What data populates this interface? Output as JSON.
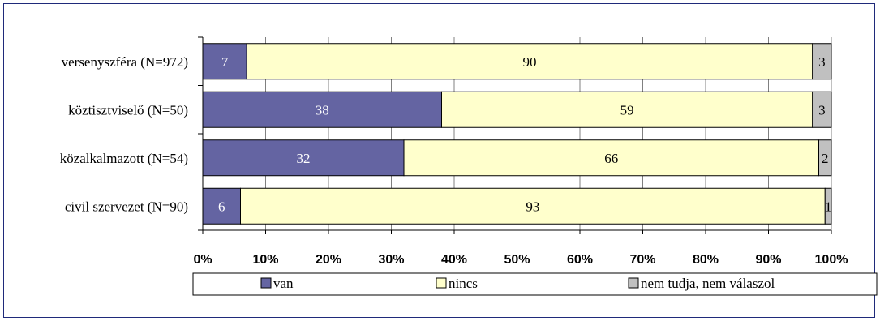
{
  "chart_data": {
    "type": "bar",
    "orientation": "horizontal",
    "stacked": "percent",
    "categories": [
      "versenyszféra (N=972)",
      "köztisztviselő (N=50)",
      "közalkalmazott (N=54)",
      "civil szervezet (N=90)"
    ],
    "series": [
      {
        "name": "van",
        "color": "#6464a2",
        "label_color": "#ffffff",
        "values": [
          7,
          38,
          32,
          6
        ]
      },
      {
        "name": "nincs",
        "color": "#ffffcc",
        "label_color": "#000000",
        "values": [
          90,
          59,
          66,
          93
        ]
      },
      {
        "name": "nem tudja, nem válaszol",
        "color": "#c0c0c0",
        "label_color": "#000000",
        "values": [
          3,
          3,
          2,
          1
        ]
      }
    ],
    "x_ticks": [
      "0%",
      "10%",
      "20%",
      "30%",
      "40%",
      "50%",
      "60%",
      "70%",
      "80%",
      "90%",
      "100%"
    ],
    "xlim": [
      0,
      100
    ],
    "grid": "vertical",
    "legend": "bottom",
    "title": "",
    "xlabel": "",
    "ylabel": ""
  }
}
